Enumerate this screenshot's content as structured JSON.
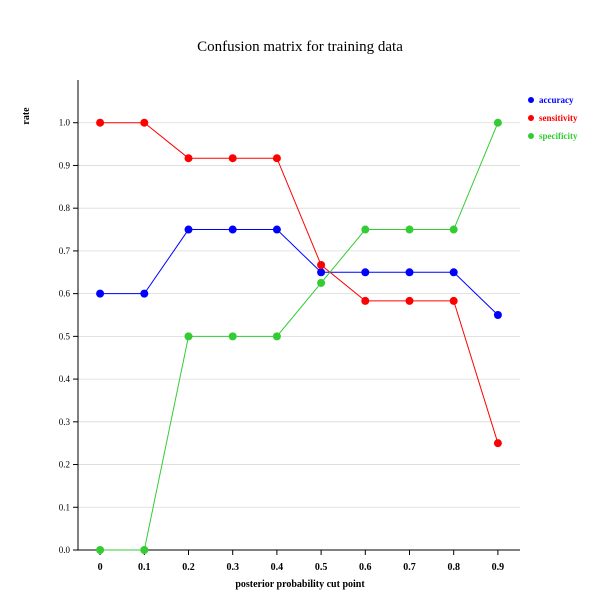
{
  "chart_data": {
    "type": "line",
    "title": "Confusion matrix for training data",
    "xlabel": "posterior probability cut point",
    "ylabel": "rate",
    "x": [
      0,
      0.1,
      0.2,
      0.3,
      0.4,
      0.5,
      0.6,
      0.7,
      0.8,
      0.9
    ],
    "x_tick_labels": [
      "0",
      "0.1",
      "0.2",
      "0.3",
      "0.4",
      "0.5",
      "0.6",
      "0.7",
      "0.8",
      "0.9"
    ],
    "y_ticks": [
      0.0,
      0.1,
      0.2,
      0.3,
      0.4,
      0.5,
      0.6,
      0.7,
      0.8,
      0.9,
      1.0
    ],
    "y_tick_labels": [
      "0.0",
      "0.1",
      "0.2",
      "0.3",
      "0.4",
      "0.5",
      "0.6",
      "0.7",
      "0.8",
      "0.9",
      "1.0"
    ],
    "ylim": [
      0,
      1.1
    ],
    "xlim": [
      -0.05,
      0.95
    ],
    "grid": true,
    "legend_position": "right",
    "series": [
      {
        "name": "accuracy",
        "color": "#0000ff",
        "values": [
          0.6,
          0.6,
          0.75,
          0.75,
          0.75,
          0.65,
          0.65,
          0.65,
          0.65,
          0.55
        ]
      },
      {
        "name": "sensitivity",
        "color": "#ff0000",
        "values": [
          1.0,
          1.0,
          0.917,
          0.917,
          0.917,
          0.667,
          0.583,
          0.583,
          0.583,
          0.25
        ]
      },
      {
        "name": "specificity",
        "color": "#33cc33",
        "values": [
          0.0,
          0.0,
          0.5,
          0.5,
          0.5,
          0.625,
          0.75,
          0.75,
          0.75,
          1.0
        ]
      }
    ]
  }
}
